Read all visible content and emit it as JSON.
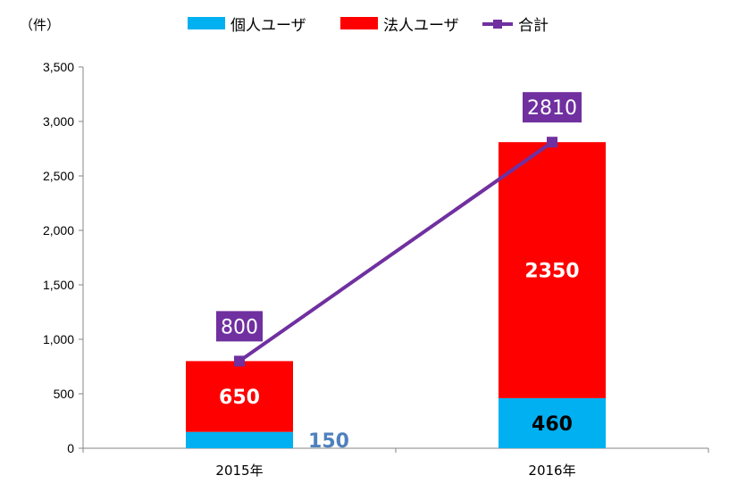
{
  "chart_data": {
    "type": "bar",
    "stacked": true,
    "unit_label": "（件）",
    "categories": [
      "2015年",
      "2016年"
    ],
    "series": [
      {
        "name": "個人ユーザ",
        "values": [
          150,
          460
        ],
        "color": "#00b0f0",
        "label_color": [
          "#4f81bd",
          "#000000"
        ]
      },
      {
        "name": "法人ユーザ",
        "values": [
          650,
          2350
        ],
        "color": "#ff0000",
        "label_color": [
          "#ffffff",
          "#ffffff"
        ]
      },
      {
        "name": "合計",
        "type": "line",
        "values": [
          800,
          2810
        ],
        "color": "#7030a0"
      }
    ],
    "ylim": [
      0,
      3500
    ],
    "yticks": [
      "0",
      "500",
      "1,000",
      "1,500",
      "2,000",
      "2,500",
      "3,000",
      "3,500"
    ],
    "grid": false,
    "legend_position": "top"
  }
}
